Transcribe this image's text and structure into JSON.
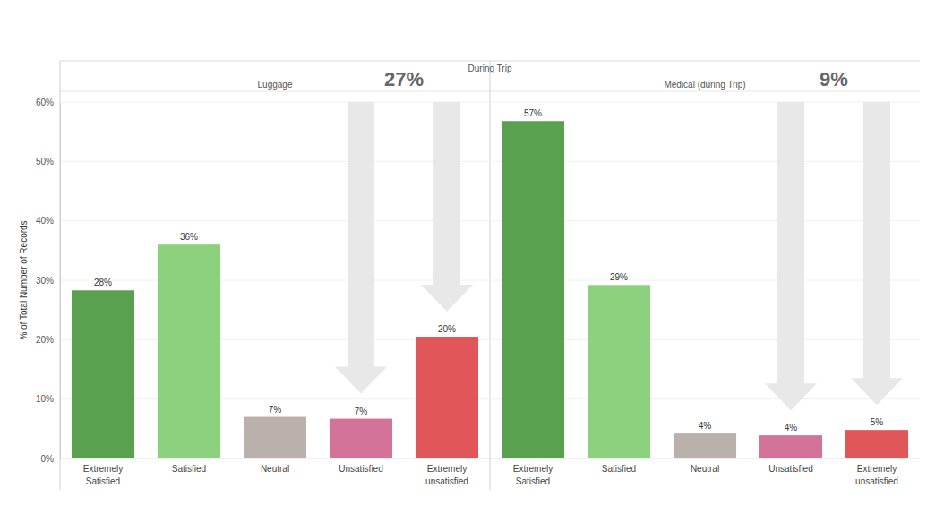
{
  "title": "During Trip",
  "chart_data": [
    {
      "type": "bar",
      "title": "Luggage",
      "ylabel": "% of Total Number of Records",
      "annotation": "27%",
      "categories": [
        "Extremely Satisfied",
        "Satisfied",
        "Neutral",
        "Unsatisfied",
        "Extremely unsatisfied"
      ],
      "values": [
        28.3,
        36.0,
        7.0,
        6.7,
        20.5
      ],
      "value_labels": [
        "28%",
        "36%",
        "7%",
        "7%",
        "20%"
      ],
      "colors": [
        "#59a14f",
        "#8cd17d",
        "#bab0ac",
        "#d4739a",
        "#e15759"
      ],
      "ylim": [
        0,
        60
      ],
      "yticks": [
        {
          "value": 0,
          "label": "0%"
        },
        {
          "value": 10,
          "label": "10%"
        },
        {
          "value": 20,
          "label": "20%"
        },
        {
          "value": 30,
          "label": "30%"
        },
        {
          "value": 40,
          "label": "40%"
        },
        {
          "value": 50,
          "label": "50%"
        },
        {
          "value": 60,
          "label": "60%"
        }
      ],
      "grid": true,
      "data_labels": true
    },
    {
      "type": "bar",
      "title": "Medical (during Trip)",
      "annotation": "9%",
      "categories": [
        "Extremely Satisfied",
        "Satisfied",
        "Neutral",
        "Unsatisfied",
        "Extremely unsatisfied"
      ],
      "values": [
        56.8,
        29.2,
        4.2,
        3.9,
        4.8
      ],
      "value_labels": [
        "57%",
        "29%",
        "4%",
        "4%",
        "5%"
      ],
      "colors": [
        "#59a14f",
        "#8cd17d",
        "#bab0ac",
        "#d4739a",
        "#e15759"
      ],
      "ylim": [
        0,
        60
      ],
      "yticks": [
        0,
        10,
        20,
        30,
        40,
        50,
        60
      ],
      "grid": true,
      "data_labels": true,
      "tick_labels": "x"
    }
  ]
}
